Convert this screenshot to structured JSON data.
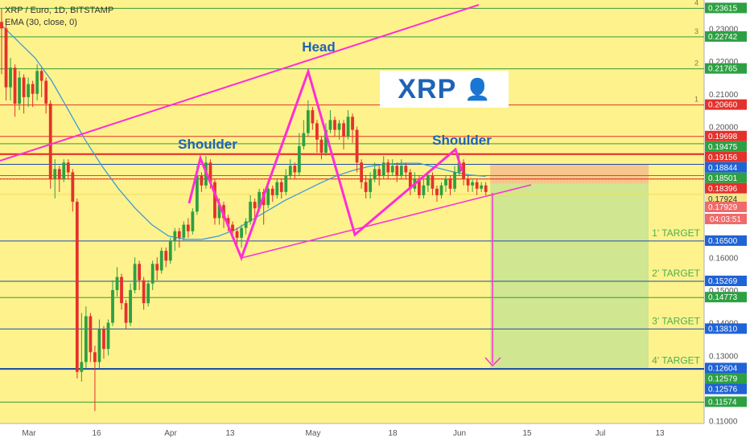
{
  "header": {
    "symbol": "XRP / Euro, 1D, BITSTAMP",
    "indicator": "EMA (30, close, 0)"
  },
  "badge": {
    "text": "XRP",
    "icon": "person-icon"
  },
  "colors": {
    "background": "#fdf28c",
    "support": "#1f4ea8",
    "resistance": "#e3322b",
    "green_line": "#3a9b3a",
    "pattern": "#ff2ed4",
    "ema": "#3d9bd9",
    "bull": "#2ea043",
    "bear": "#e3322b",
    "target_text": "#4caf50",
    "short_zone": "#f7c38b",
    "profit_zone": "#cde590"
  },
  "chart_data": {
    "type": "candlestick",
    "title": "XRP / Euro, 1D, BITSTAMP",
    "ylim": [
      0.1092,
      0.2387
    ],
    "x_ticks": [
      "Mar",
      "16",
      "Apr",
      "13",
      "May",
      "18",
      "Jun",
      "15",
      "Jul",
      "13"
    ],
    "y_ticks": [
      "0.23000",
      "0.22000",
      "0.21000",
      "0.20000",
      "0.16000",
      "0.15000",
      "0.14000",
      "0.13000",
      "0.11000"
    ],
    "last_price": "0.17929",
    "countdown": "04:03:51",
    "levels": [
      {
        "price": "0.23615",
        "color": "green",
        "number": "4"
      },
      {
        "price": "0.22742",
        "color": "green",
        "number": "3"
      },
      {
        "price": "0.21765",
        "color": "green",
        "number": "2"
      },
      {
        "price": "0.20660",
        "color": "red",
        "number": "1"
      },
      {
        "price": "0.19698",
        "color": "red",
        "number": ""
      },
      {
        "price": "0.19475",
        "color": "green",
        "number": ""
      },
      {
        "price": "0.19156",
        "color": "red",
        "number": ""
      },
      {
        "price": "0.18844",
        "color": "blue",
        "number": ""
      },
      {
        "price": "0.18501",
        "color": "green",
        "number": ""
      },
      {
        "price": "0.18396",
        "color": "red",
        "number": ""
      },
      {
        "price": "0.17924",
        "color": "yellow",
        "number": ""
      },
      {
        "price": "0.16500",
        "color": "blue",
        "number": ""
      },
      {
        "price": "0.15269",
        "color": "blue",
        "number": ""
      },
      {
        "price": "0.14773",
        "color": "green",
        "number": ""
      },
      {
        "price": "0.13810",
        "color": "blue",
        "number": ""
      },
      {
        "price": "0.12604",
        "color": "blue",
        "number": ""
      },
      {
        "price": "0.12579",
        "color": "green",
        "number": ""
      },
      {
        "price": "0.12576",
        "color": "blue",
        "number": ""
      },
      {
        "price": "0.11574",
        "color": "green",
        "number": ""
      }
    ],
    "annotations": [
      {
        "text": "Head"
      },
      {
        "text": "Shoulder"
      },
      {
        "text": "Shoulder"
      }
    ],
    "targets": [
      {
        "label": "1' TARGET",
        "price": 0.165
      },
      {
        "label": "2' TARGET",
        "price": 0.15269
      },
      {
        "label": "3' TARGET",
        "price": 0.1381
      },
      {
        "label": "4' TARGET",
        "price": 0.12604
      }
    ],
    "ema": [
      0.231,
      0.226,
      0.221,
      0.214,
      0.205,
      0.196,
      0.188,
      0.181,
      0.175,
      0.17,
      0.1665,
      0.1655,
      0.1655,
      0.1665,
      0.1685,
      0.1715,
      0.1745,
      0.1775,
      0.18,
      0.1825,
      0.1848,
      0.1865,
      0.1878,
      0.1885,
      0.1888,
      0.1888,
      0.1875,
      0.1862,
      0.1852,
      0.1848
    ],
    "candles": [
      [
        0.232,
        0.23,
        0.236,
        0.216
      ],
      [
        0.23,
        0.212,
        0.232,
        0.208
      ],
      [
        0.212,
        0.218,
        0.221,
        0.208
      ],
      [
        0.218,
        0.207,
        0.219,
        0.203
      ],
      [
        0.207,
        0.215,
        0.217,
        0.205
      ],
      [
        0.215,
        0.209,
        0.216,
        0.204
      ],
      [
        0.209,
        0.213,
        0.215,
        0.206
      ],
      [
        0.213,
        0.21,
        0.214,
        0.206
      ],
      [
        0.21,
        0.217,
        0.219,
        0.208
      ],
      [
        0.217,
        0.214,
        0.218,
        0.209
      ],
      [
        0.214,
        0.207,
        0.215,
        0.204
      ],
      [
        0.207,
        0.184,
        0.208,
        0.181
      ],
      [
        0.184,
        0.187,
        0.19,
        0.178
      ],
      [
        0.187,
        0.184,
        0.188,
        0.18
      ],
      [
        0.184,
        0.189,
        0.19,
        0.183
      ],
      [
        0.189,
        0.186,
        0.19,
        0.184
      ],
      [
        0.186,
        0.177,
        0.187,
        0.174
      ],
      [
        0.177,
        0.125,
        0.178,
        0.123
      ],
      [
        0.125,
        0.128,
        0.143,
        0.122
      ],
      [
        0.128,
        0.142,
        0.145,
        0.126
      ],
      [
        0.142,
        0.131,
        0.143,
        0.128
      ],
      [
        0.131,
        0.128,
        0.133,
        0.113
      ],
      [
        0.128,
        0.138,
        0.141,
        0.126
      ],
      [
        0.138,
        0.132,
        0.139,
        0.129
      ],
      [
        0.132,
        0.14,
        0.141,
        0.13
      ],
      [
        0.14,
        0.15,
        0.153,
        0.139
      ],
      [
        0.15,
        0.154,
        0.157,
        0.148
      ],
      [
        0.154,
        0.146,
        0.155,
        0.144
      ],
      [
        0.146,
        0.14,
        0.147,
        0.138
      ],
      [
        0.14,
        0.15,
        0.152,
        0.139
      ],
      [
        0.15,
        0.158,
        0.16,
        0.149
      ],
      [
        0.158,
        0.153,
        0.159,
        0.15
      ],
      [
        0.153,
        0.146,
        0.154,
        0.144
      ],
      [
        0.146,
        0.152,
        0.153,
        0.145
      ],
      [
        0.152,
        0.158,
        0.159,
        0.15
      ],
      [
        0.158,
        0.156,
        0.16,
        0.153
      ],
      [
        0.156,
        0.162,
        0.163,
        0.155
      ],
      [
        0.162,
        0.159,
        0.163,
        0.157
      ],
      [
        0.159,
        0.165,
        0.166,
        0.158
      ],
      [
        0.165,
        0.168,
        0.169,
        0.162
      ],
      [
        0.168,
        0.166,
        0.169,
        0.163
      ],
      [
        0.166,
        0.17,
        0.171,
        0.165
      ],
      [
        0.17,
        0.168,
        0.172,
        0.166
      ],
      [
        0.168,
        0.174,
        0.175,
        0.167
      ],
      [
        0.174,
        0.185,
        0.188,
        0.173
      ],
      [
        0.185,
        0.182,
        0.186,
        0.18
      ],
      [
        0.182,
        0.189,
        0.191,
        0.181
      ],
      [
        0.189,
        0.183,
        0.19,
        0.181
      ],
      [
        0.183,
        0.172,
        0.184,
        0.17
      ],
      [
        0.172,
        0.176,
        0.178,
        0.17
      ],
      [
        0.176,
        0.172,
        0.177,
        0.169
      ],
      [
        0.172,
        0.17,
        0.173,
        0.168
      ],
      [
        0.17,
        0.168,
        0.171,
        0.166
      ],
      [
        0.168,
        0.166,
        0.169,
        0.164
      ],
      [
        0.166,
        0.169,
        0.17,
        0.163
      ],
      [
        0.169,
        0.171,
        0.172,
        0.167
      ],
      [
        0.171,
        0.177,
        0.179,
        0.17
      ],
      [
        0.177,
        0.175,
        0.178,
        0.172
      ],
      [
        0.175,
        0.18,
        0.181,
        0.174
      ],
      [
        0.18,
        0.176,
        0.181,
        0.17
      ],
      [
        0.176,
        0.181,
        0.183,
        0.175
      ],
      [
        0.181,
        0.179,
        0.182,
        0.177
      ],
      [
        0.179,
        0.183,
        0.184,
        0.178
      ],
      [
        0.183,
        0.18,
        0.184,
        0.178
      ],
      [
        0.18,
        0.185,
        0.187,
        0.179
      ],
      [
        0.185,
        0.188,
        0.19,
        0.184
      ],
      [
        0.188,
        0.186,
        0.189,
        0.184
      ],
      [
        0.186,
        0.194,
        0.198,
        0.185
      ],
      [
        0.194,
        0.198,
        0.202,
        0.193
      ],
      [
        0.198,
        0.205,
        0.208,
        0.197
      ],
      [
        0.205,
        0.201,
        0.206,
        0.199
      ],
      [
        0.201,
        0.196,
        0.202,
        0.192
      ],
      [
        0.196,
        0.192,
        0.197,
        0.19
      ],
      [
        0.192,
        0.199,
        0.201,
        0.191
      ],
      [
        0.199,
        0.202,
        0.205,
        0.198
      ],
      [
        0.202,
        0.199,
        0.203,
        0.197
      ],
      [
        0.199,
        0.201,
        0.202,
        0.196
      ],
      [
        0.201,
        0.197,
        0.202,
        0.193
      ],
      [
        0.197,
        0.203,
        0.205,
        0.196
      ],
      [
        0.203,
        0.199,
        0.204,
        0.195
      ],
      [
        0.199,
        0.189,
        0.2,
        0.186
      ],
      [
        0.189,
        0.183,
        0.19,
        0.181
      ],
      [
        0.183,
        0.18,
        0.185,
        0.178
      ],
      [
        0.18,
        0.184,
        0.186,
        0.178
      ],
      [
        0.184,
        0.187,
        0.189,
        0.183
      ],
      [
        0.187,
        0.185,
        0.188,
        0.182
      ],
      [
        0.185,
        0.189,
        0.191,
        0.184
      ],
      [
        0.189,
        0.186,
        0.19,
        0.184
      ],
      [
        0.186,
        0.188,
        0.19,
        0.185
      ],
      [
        0.188,
        0.185,
        0.189,
        0.183
      ],
      [
        0.185,
        0.188,
        0.19,
        0.184
      ],
      [
        0.188,
        0.186,
        0.189,
        0.184
      ],
      [
        0.186,
        0.181,
        0.187,
        0.179
      ],
      [
        0.181,
        0.184,
        0.186,
        0.18
      ],
      [
        0.184,
        0.179,
        0.185,
        0.178
      ],
      [
        0.179,
        0.182,
        0.184,
        0.178
      ],
      [
        0.182,
        0.185,
        0.186,
        0.18
      ],
      [
        0.185,
        0.181,
        0.186,
        0.179
      ],
      [
        0.181,
        0.179,
        0.182,
        0.177
      ],
      [
        0.179,
        0.182,
        0.183,
        0.178
      ],
      [
        0.182,
        0.184,
        0.185,
        0.18
      ],
      [
        0.184,
        0.181,
        0.185,
        0.179
      ],
      [
        0.181,
        0.186,
        0.188,
        0.18
      ],
      [
        0.186,
        0.189,
        0.192,
        0.185
      ],
      [
        0.189,
        0.184,
        0.19,
        0.182
      ],
      [
        0.184,
        0.182,
        0.185,
        0.18
      ],
      [
        0.182,
        0.183,
        0.184,
        0.18
      ],
      [
        0.183,
        0.181,
        0.184,
        0.179
      ],
      [
        0.181,
        0.182,
        0.183,
        0.18
      ],
      [
        0.182,
        0.18,
        0.183,
        0.179
      ]
    ]
  }
}
